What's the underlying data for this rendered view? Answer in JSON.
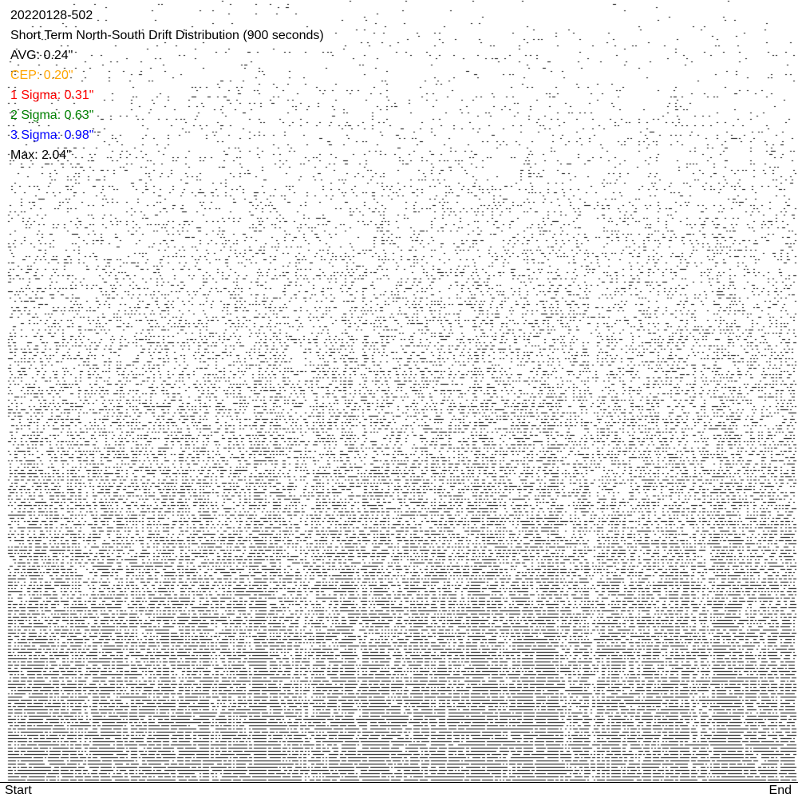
{
  "chart_data": {
    "type": "scatter",
    "title": "20220128-502",
    "subtitle": "Short Term North-South Drift Distribution (900 seconds)",
    "x_tick_labels": [
      "Start",
      "End"
    ],
    "stats": [
      {
        "label": "AVG: 0.24\"",
        "color": "#000000"
      },
      {
        "label": "CEP: 0.20\"",
        "color": "#FFA500"
      },
      {
        "label": "1 Sigma: 0.31\"",
        "color": "#FF0000"
      },
      {
        "label": "2 Sigma: 0.63\"",
        "color": "#008000"
      },
      {
        "label": "3 Sigma: 0.98\"",
        "color": "#0000FF"
      },
      {
        "label": "Max: 2.04\"",
        "color": "#000000"
      }
    ],
    "point_color": "#000000",
    "grid": false
  }
}
